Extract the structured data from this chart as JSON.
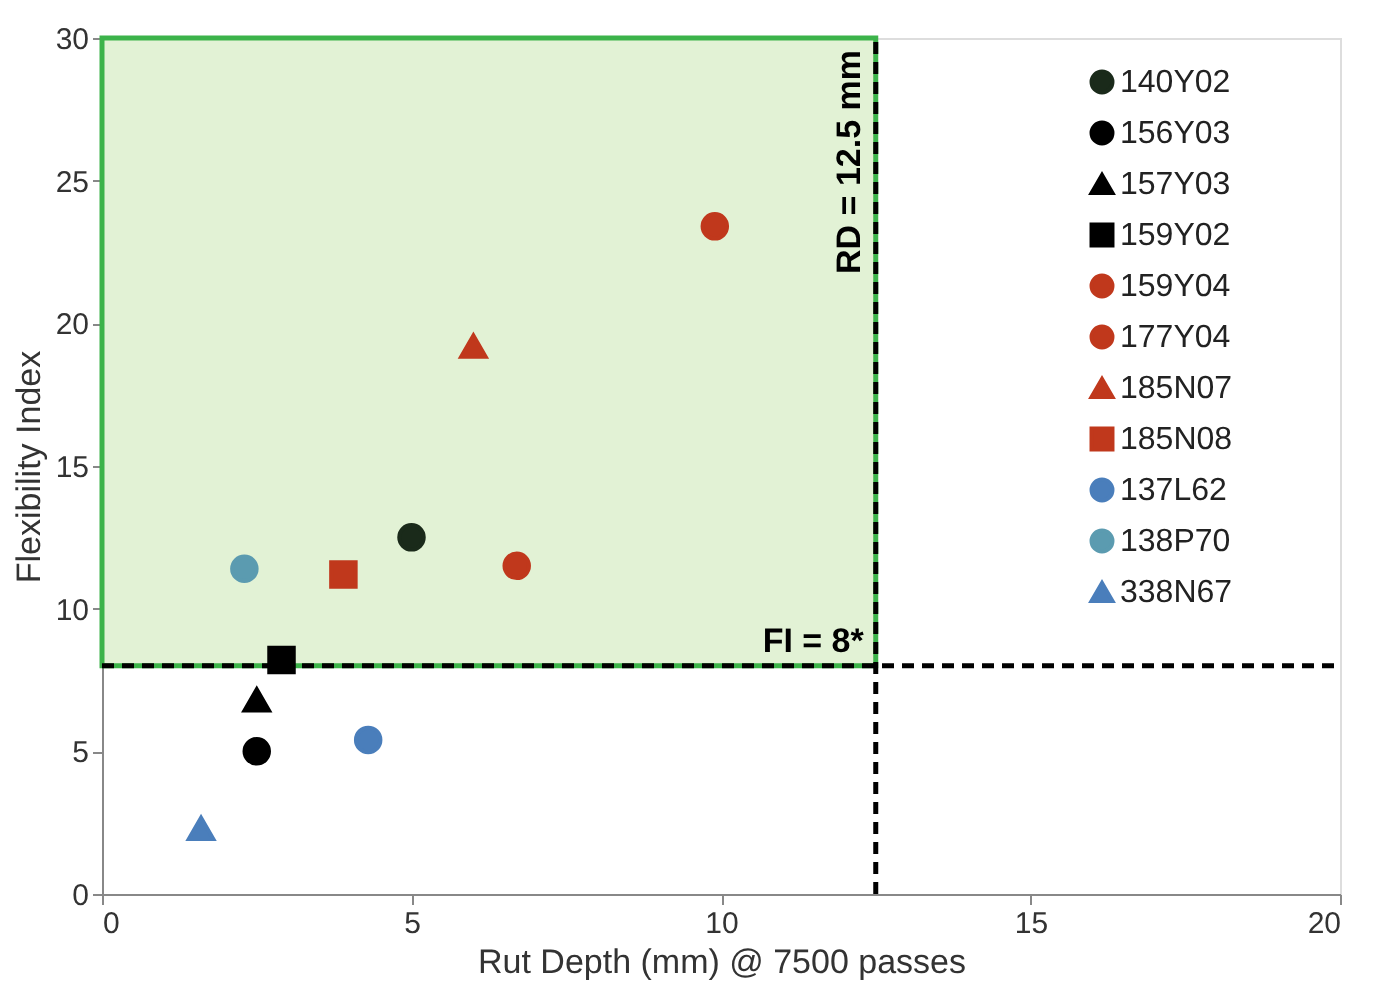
{
  "chart_data": {
    "type": "scatter",
    "xlabel": "Rut Depth (mm) @ 7500 passes",
    "ylabel": "Flexibility Index",
    "xlim": [
      0,
      20
    ],
    "xticks": [
      0,
      5,
      10,
      15,
      20
    ],
    "ylim": [
      0,
      30
    ],
    "yticks": [
      0,
      5,
      10,
      15,
      20,
      25,
      30
    ],
    "grid": false,
    "legend": "top right",
    "series": [
      {
        "name": "140Y02",
        "color": "#1a2a1a",
        "marker": "circle",
        "x": [
          5.0
        ],
        "values": [
          12.5
        ]
      },
      {
        "name": "156Y03",
        "color": "#000000",
        "marker": "circle",
        "x": [
          2.5
        ],
        "values": [
          5.0
        ]
      },
      {
        "name": "157Y03",
        "color": "#000000",
        "marker": "triangle",
        "x": [
          2.5
        ],
        "values": [
          6.8
        ]
      },
      {
        "name": "159Y02",
        "color": "#000000",
        "marker": "square",
        "x": [
          2.9
        ],
        "values": [
          8.2
        ]
      },
      {
        "name": "159Y04",
        "color": "#c0381c",
        "marker": "circle",
        "x": [
          9.9
        ],
        "values": [
          23.4
        ]
      },
      {
        "name": "177Y04",
        "color": "#c0381c",
        "marker": "circle",
        "x": [
          6.7
        ],
        "values": [
          11.5
        ]
      },
      {
        "name": "185N07",
        "color": "#c0381c",
        "marker": "triangle",
        "x": [
          6.0
        ],
        "values": [
          19.2
        ]
      },
      {
        "name": "185N08",
        "color": "#c0381c",
        "marker": "square",
        "x": [
          3.9
        ],
        "values": [
          11.2
        ]
      },
      {
        "name": "137L62",
        "color": "#4a7ebb",
        "marker": "circle",
        "x": [
          4.3
        ],
        "values": [
          5.4
        ]
      },
      {
        "name": "138P70",
        "color": "#5b9bb0",
        "marker": "circle",
        "x": [
          2.3
        ],
        "values": [
          11.4
        ]
      },
      {
        "name": "338N67",
        "color": "#4a7ebb",
        "marker": "triangle",
        "x": [
          1.6
        ],
        "values": [
          2.3
        ]
      }
    ],
    "ref_lines": [
      {
        "axis": "x",
        "value": 12.5,
        "label": "RD = 12.5 mm",
        "line_style": "dashed",
        "color": "#000000"
      },
      {
        "axis": "y",
        "value": 8,
        "label": "FI = 8*",
        "line_style": "dashed",
        "color": "#000000"
      }
    ],
    "bands": [
      {
        "axis": "x",
        "from": 0,
        "to": 12.5,
        "color": "#e2f2d5"
      }
    ]
  }
}
